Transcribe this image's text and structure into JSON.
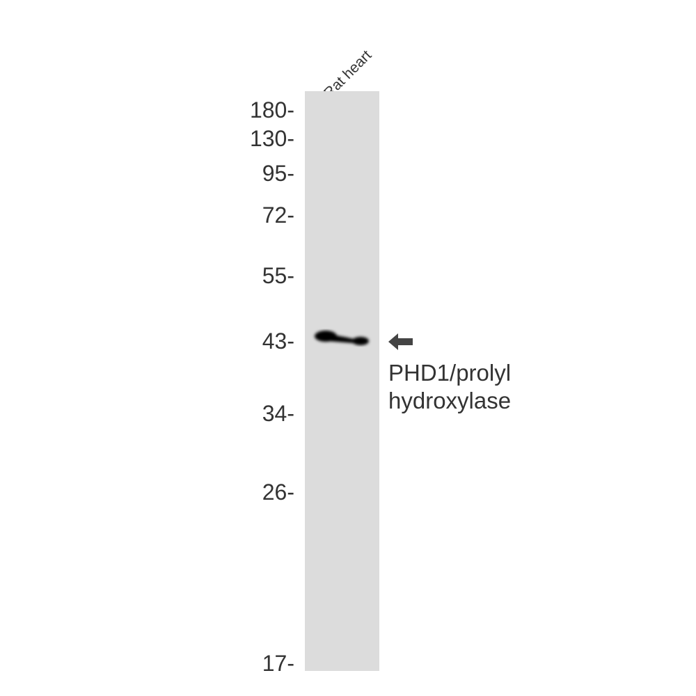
{
  "lane_labels": [
    "Rat heart"
  ],
  "markers": [
    "180-",
    "130-",
    "95-",
    "72-",
    "55-",
    "43-",
    "34-",
    "26-",
    "17-"
  ],
  "target": {
    "line1": "PHD1/prolyl",
    "line2": "hydroxylase"
  },
  "colors": {
    "lane": "#dcdcdc",
    "band": "#000000",
    "arrow": "#444444",
    "text": "#333333"
  },
  "icons": {
    "arrow": "arrow-left-icon"
  }
}
